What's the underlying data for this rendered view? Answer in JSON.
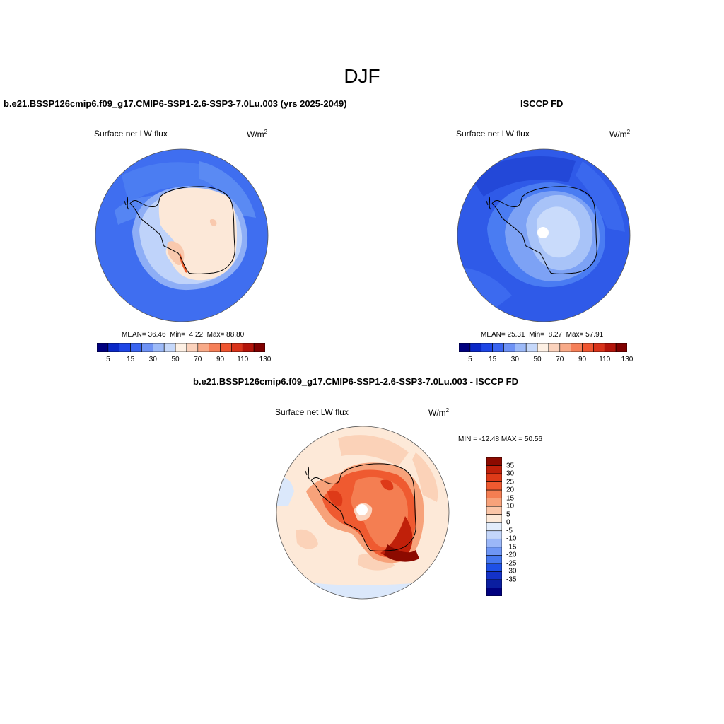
{
  "page": {
    "title": "DJF"
  },
  "panels": [
    {
      "title": "b.e21.BSSP126cmip6.f09_g17.CMIP6-SSP1-2.6-SSP3-7.0Lu.003 (yrs 2025-2049)",
      "variable": "Surface net LW flux",
      "units": "W/m",
      "units_sup": "2",
      "mean_label": "MEAN=",
      "mean_value": "36.46",
      "min_label": "Min=",
      "min_value": "4.22",
      "max_label": "Max=",
      "max_value": "88.80"
    },
    {
      "title": "ISCCP FD",
      "variable": "Surface net LW flux",
      "units": "W/m",
      "units_sup": "2",
      "mean_label": "MEAN=",
      "mean_value": "25.31",
      "min_label": "Min=",
      "min_value": "8.27",
      "max_label": "Max=",
      "max_value": "57.91"
    },
    {
      "title": "b.e21.BSSP126cmip6.f09_g17.CMIP6-SSP1-2.6-SSP3-7.0Lu.003 - ISCCP FD",
      "variable": "Surface net LW flux",
      "units": "W/m",
      "units_sup": "2",
      "minmax_text": "MIN = -12.48 MAX =  50.56"
    }
  ],
  "colorbar_abs": {
    "colors": [
      "#00007f",
      "#0a28c7",
      "#1e46e6",
      "#3a64f0",
      "#6e92f5",
      "#9dbaf8",
      "#c6d8fa",
      "#fdf0e4",
      "#fbd2bc",
      "#f8aa88",
      "#f57f58",
      "#ef5530",
      "#d9331a",
      "#b3140a",
      "#7f0000"
    ],
    "tick_labels": [
      "5",
      "15",
      "30",
      "50",
      "70",
      "90",
      "110",
      "130"
    ]
  },
  "colorbar_diff": {
    "colors": [
      "#00007f",
      "#0a1ea0",
      "#1432c8",
      "#1e50e6",
      "#4678f0",
      "#6e96f5",
      "#9bb7f8",
      "#c4d6fa",
      "#e2ecfb",
      "#fde9d8",
      "#fbc6a8",
      "#f7a27a",
      "#f47e52",
      "#ef5a30",
      "#de3a18",
      "#c0200a",
      "#8c0a00"
    ],
    "tick_labels": [
      "35",
      "30",
      "25",
      "20",
      "15",
      "10",
      "5",
      "0",
      "-5",
      "-10",
      "-15",
      "-20",
      "-25",
      "-30",
      "-35"
    ]
  }
}
